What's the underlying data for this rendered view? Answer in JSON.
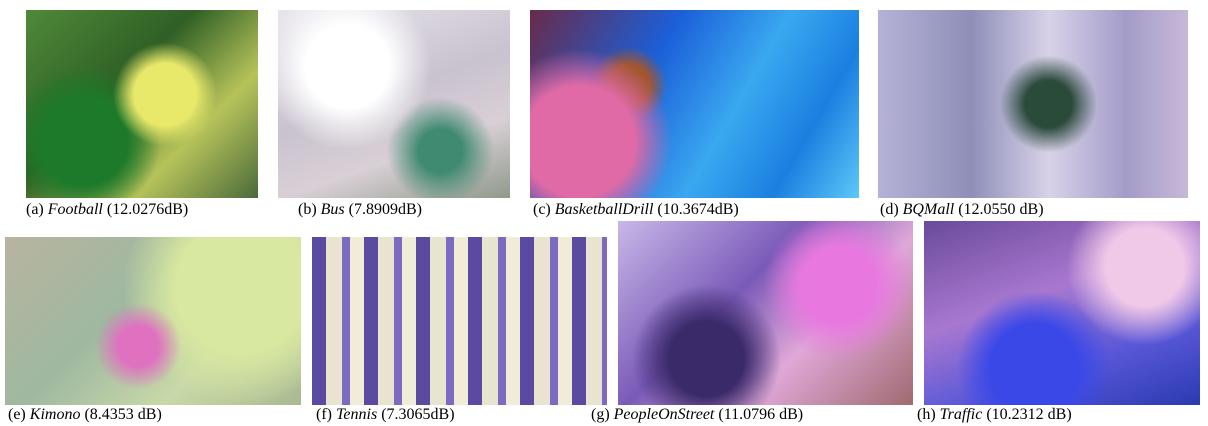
{
  "panels": [
    {
      "tag": "(a)",
      "name": "Football",
      "psnr": "(12.0276dB)"
    },
    {
      "tag": "(b)",
      "name": "Bus",
      "psnr": "(7.8909dB)"
    },
    {
      "tag": "(c)",
      "name": "BasketballDrill",
      "psnr": "(10.3674dB)"
    },
    {
      "tag": "(d)",
      "name": "BQMall",
      "psnr": "(12.0550 dB)"
    },
    {
      "tag": "(e)",
      "name": "Kimono",
      "psnr": "(8.4353 dB)"
    },
    {
      "tag": "(f)",
      "name": "Tennis",
      "psnr": "(7.3065dB)"
    },
    {
      "tag": "(g)",
      "name": "PeopleOnStreet",
      "psnr": "(11.0796 dB)"
    },
    {
      "tag": "(h)",
      "name": "Traffic",
      "psnr": "(10.2312 dB)"
    }
  ]
}
